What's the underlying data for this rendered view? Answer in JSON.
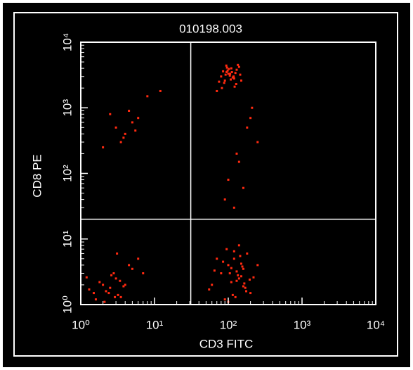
{
  "chart_data": {
    "type": "scatter",
    "title": "010198.003",
    "x_label": "CD3 FITC",
    "y_label": "CD8 PE",
    "xscale": "log",
    "yscale": "log",
    "xlim": [
      1,
      10000
    ],
    "ylim": [
      1,
      10000
    ],
    "xticks": [
      {
        "value": 1,
        "label": "10⁰"
      },
      {
        "value": 10,
        "label": "10¹"
      },
      {
        "value": 100,
        "label": "10²"
      },
      {
        "value": 1000,
        "label": "10³"
      },
      {
        "value": 10000,
        "label": "10⁴"
      }
    ],
    "yticks": [
      {
        "value": 1,
        "label": "10⁰"
      },
      {
        "value": 10,
        "label": "10¹"
      },
      {
        "value": 100,
        "label": "10²"
      },
      {
        "value": 1000,
        "label": "10³"
      },
      {
        "value": 10000,
        "label": "10⁴"
      }
    ],
    "quadrant": {
      "x": 31,
      "y": 20
    },
    "color": "#ff2a10",
    "x": [
      80,
      95,
      110,
      120,
      100,
      90,
      130,
      105,
      85,
      115,
      140,
      75,
      125,
      98,
      108,
      92,
      118,
      135,
      88,
      102,
      112,
      128,
      96,
      82,
      145,
      70,
      150,
      106,
      94,
      122,
      60,
      80,
      100,
      120,
      140,
      160,
      180,
      200,
      90,
      110,
      130,
      150,
      170,
      70,
      95,
      115,
      135,
      155,
      175,
      195,
      85,
      105,
      125,
      145,
      165,
      55,
      65,
      220,
      250,
      140,
      120,
      100,
      160,
      130,
      110,
      150,
      1.5,
      2,
      2.5,
      3,
      3.5,
      1.8,
      2.2,
      2.8,
      3.2,
      4,
      1.3,
      2.6,
      3.8,
      5,
      1.6,
      2.4,
      3.4,
      4.5,
      6,
      2.1,
      2.9,
      1.2,
      3.1,
      7,
      2.5,
      3,
      4,
      5,
      3.5,
      6,
      4.5,
      2,
      8,
      3.8,
      5.5,
      12,
      100,
      130,
      180,
      210,
      160,
      90,
      250,
      140,
      200,
      120
    ],
    "values": [
      3000,
      3500,
      4000,
      2800,
      3300,
      2600,
      3800,
      3100,
      3600,
      2900,
      4200,
      2500,
      3400,
      3700,
      2700,
      3200,
      3000,
      4500,
      2400,
      3900,
      3500,
      2300,
      4100,
      2000,
      3200,
      1800,
      2600,
      3300,
      4400,
      2100,
      2,
      3,
      4,
      5,
      2.5,
      3.5,
      6,
      1.5,
      1.2,
      2.2,
      3.2,
      4.2,
      1.8,
      5,
      7,
      1.4,
      2.8,
      3.8,
      1.6,
      2.4,
      4.5,
      3,
      1.3,
      5.5,
      2.1,
      1.7,
      3.3,
      2.6,
      4,
      8,
      6.5,
      1.1,
      1.9,
      2.3,
      3.6,
      2.7,
      1.5,
      2,
      1.8,
      2.5,
      1.3,
      2.2,
      1.6,
      3,
      1.4,
      2,
      1.7,
      2.8,
      1.9,
      3.5,
      1.2,
      1.5,
      2.3,
      4,
      5,
      1.1,
      1.3,
      2.6,
      6,
      3,
      800,
      500,
      400,
      600,
      300,
      700,
      900,
      250,
      1500,
      350,
      450,
      1800,
      80,
      200,
      500,
      1000,
      60,
      40,
      300,
      150,
      700,
      30
    ]
  }
}
